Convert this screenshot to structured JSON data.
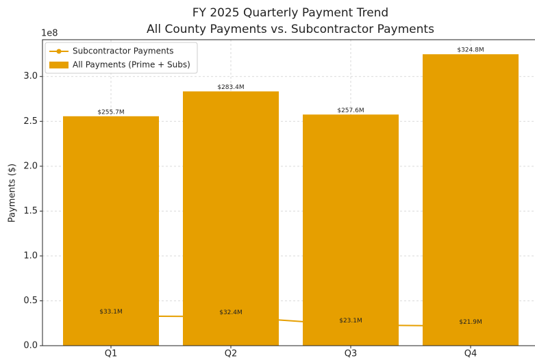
{
  "chart_data": {
    "type": "bar",
    "title": "FY 2025 Quarterly Payment Trend",
    "subtitle": "All County Payments vs. Subcontractor Payments",
    "ylabel": "Payments ($)",
    "y_offset_label": "1e8",
    "categories": [
      "Q1",
      "Q2",
      "Q3",
      "Q4"
    ],
    "series": [
      {
        "name": "Subcontractor Payments",
        "type": "line",
        "color": "#e69f00",
        "values": [
          33100000,
          32400000,
          23100000,
          21900000
        ],
        "value_labels": [
          "$33.1M",
          "$32.4M",
          "$23.1M",
          "$21.9M"
        ]
      },
      {
        "name": "All Payments (Prime + Subs)",
        "type": "bar",
        "color": "#e69f00",
        "values": [
          255700000,
          283400000,
          257600000,
          324800000
        ],
        "value_labels": [
          "$255.7M",
          "$283.4M",
          "$257.6M",
          "$324.8M"
        ]
      }
    ],
    "ylim": [
      0,
      341000000
    ],
    "yticks": [
      {
        "value": 0,
        "label": "0.0"
      },
      {
        "value": 50000000,
        "label": "0.5"
      },
      {
        "value": 100000000,
        "label": "1.0"
      },
      {
        "value": 150000000,
        "label": "1.5"
      },
      {
        "value": 200000000,
        "label": "2.0"
      },
      {
        "value": 250000000,
        "label": "2.5"
      },
      {
        "value": 300000000,
        "label": "3.0"
      }
    ],
    "grid": true,
    "legend": "upper left"
  }
}
